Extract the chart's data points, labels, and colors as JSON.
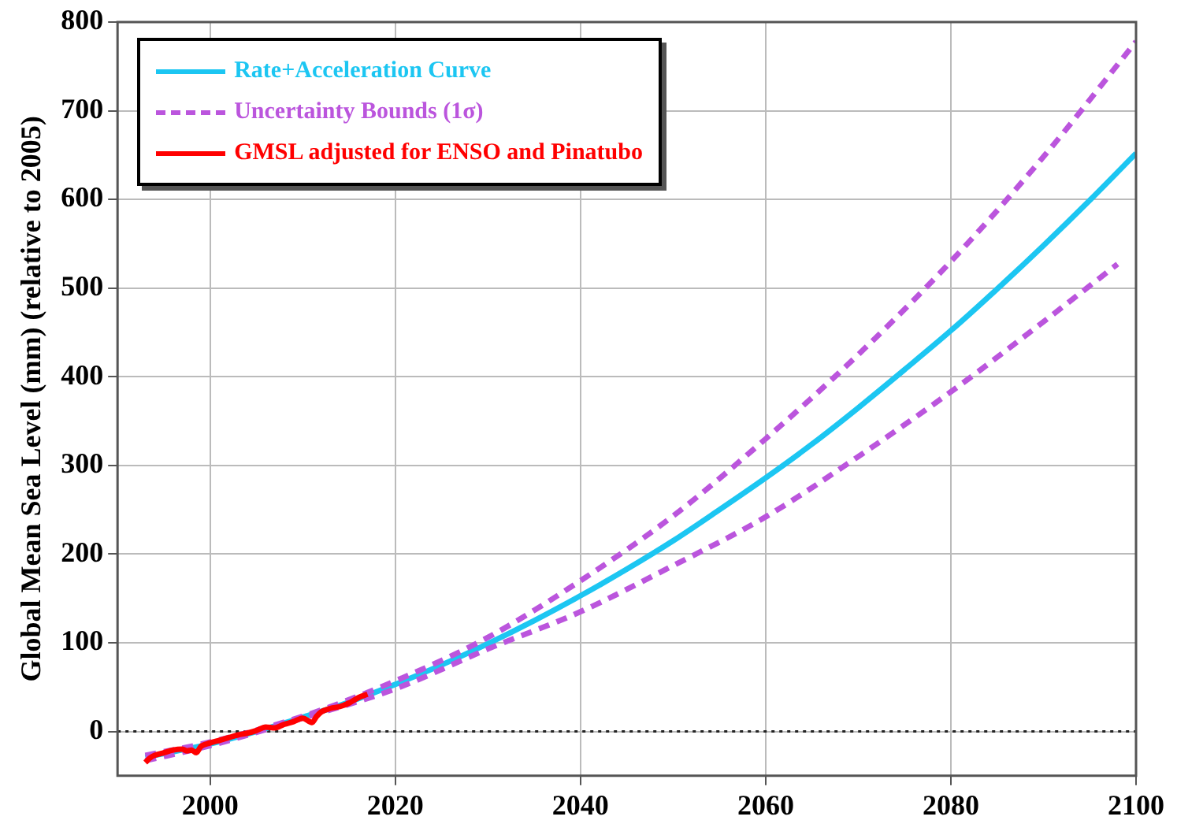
{
  "chart_data": {
    "type": "line",
    "ylabel": "Global Mean Sea Level (mm) (relative to 2005)",
    "xlim": [
      1990,
      2100
    ],
    "xticks": [
      2000,
      2020,
      2040,
      2060,
      2080,
      2100
    ],
    "ylim": [
      -50,
      800
    ],
    "yticks": [
      0,
      100,
      200,
      300,
      400,
      500,
      600,
      700,
      800
    ],
    "grid": true,
    "legend": "top left",
    "marker": "none",
    "ref_lines": [
      {
        "axis": "y",
        "value": 0,
        "line_style": "dotted",
        "color": "#222222"
      }
    ],
    "series": [
      {
        "name": "Rate+Acceleration Curve",
        "color": "#1cc6f2",
        "line_style": "solid",
        "x": [
          1993,
          1995,
          2000,
          2005,
          2010,
          2015,
          2020,
          2025,
          2030,
          2035,
          2040,
          2045,
          2050,
          2055,
          2060,
          2065,
          2070,
          2075,
          2080,
          2085,
          2090,
          2095,
          2100
        ],
        "values": [
          -29,
          -25,
          -14,
          0,
          16,
          33,
          53,
          75,
          99,
          125,
          153,
          183,
          215,
          250,
          286,
          324,
          365,
          408,
          452,
          499,
          548,
          599,
          652
        ]
      },
      {
        "name": "Uncertainty Bounds (1σ)",
        "color": "#bb55dd",
        "line_style": "dashed",
        "x": [
          1993,
          2000,
          2010,
          2020,
          2030,
          2040,
          2050,
          2060,
          2070,
          2080,
          2090,
          2100
        ],
        "values": [
          -27,
          -12,
          17,
          57,
          106,
          170,
          243,
          330,
          425,
          530,
          648,
          778
        ]
      },
      {
        "color": "#bb55dd",
        "line_style": "dashed",
        "x": [
          1993,
          2000,
          2010,
          2020,
          2030,
          2040,
          2050,
          2060,
          2070,
          2080,
          2090,
          2098
        ],
        "values": [
          -33,
          -16,
          15,
          48,
          93,
          135,
          187,
          242,
          310,
          383,
          462,
          527
        ]
      },
      {
        "name": "GMSL adjusted for ENSO and Pinatubo",
        "color": "#ff0000",
        "line_style": "solid",
        "x": [
          1993,
          1993.5,
          1994,
          1995,
          1996,
          1997,
          1997.5,
          1998,
          1998.5,
          1999,
          2000,
          2001,
          2002,
          2003,
          2004,
          2005,
          2006,
          2007,
          2008,
          2009,
          2010,
          2011,
          2011.5,
          2012,
          2013,
          2014,
          2015,
          2016,
          2017
        ],
        "values": [
          -35,
          -30,
          -27,
          -24,
          -21,
          -20,
          -22,
          -21,
          -24,
          -17,
          -13,
          -10,
          -7,
          -4,
          -2,
          1,
          5,
          4,
          8,
          11,
          15,
          10,
          17,
          22,
          26,
          28,
          32,
          38,
          42
        ]
      }
    ]
  }
}
